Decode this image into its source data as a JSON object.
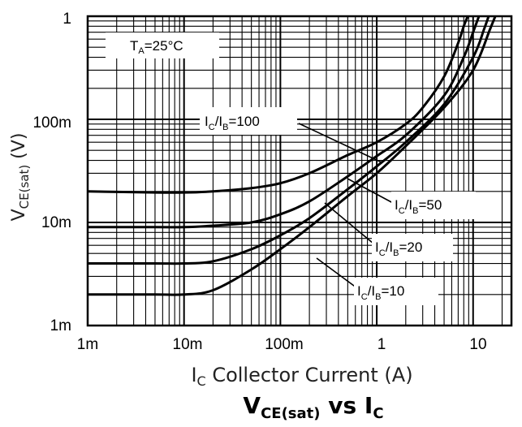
{
  "chart_data": {
    "type": "line",
    "title": "V",
    "title_sub": "CE(sat)",
    "title_vs": " vs I",
    "title_vs_sub": "C",
    "xlabel_main": "I",
    "xlabel_sub": "C",
    "xlabel_rest": "  Collector Current (A)",
    "ylabel_main": "V",
    "ylabel_sub": "CE(sat)",
    "ylabel_rest": " (V)",
    "x_scale": "log",
    "y_scale": "log",
    "xlim": [
      0.001,
      25
    ],
    "ylim": [
      0.001,
      1
    ],
    "grid": true,
    "x_ticks": [
      {
        "value": 0.001,
        "label": "1m"
      },
      {
        "value": 0.01,
        "label": "10m"
      },
      {
        "value": 0.1,
        "label": "100m"
      },
      {
        "value": 1,
        "label": "1"
      },
      {
        "value": 10,
        "label": "10"
      }
    ],
    "y_ticks": [
      {
        "value": 0.001,
        "label": "1m"
      },
      {
        "value": 0.01,
        "label": "10m"
      },
      {
        "value": 0.1,
        "label": "100m"
      },
      {
        "value": 1,
        "label": "1"
      }
    ],
    "condition": {
      "a": "T",
      "b": "A",
      "c": "=25°C"
    },
    "series": [
      {
        "name": "IC/IB=100",
        "x": [
          0.001,
          0.005,
          0.01,
          0.02,
          0.05,
          0.1,
          0.2,
          0.5,
          1,
          2,
          3,
          5,
          7,
          8,
          8.8
        ],
        "y": [
          0.02,
          0.0195,
          0.0195,
          0.02,
          0.0215,
          0.024,
          0.03,
          0.045,
          0.06,
          0.09,
          0.13,
          0.26,
          0.55,
          0.8,
          1.0
        ]
      },
      {
        "name": "IC/IB=50",
        "x": [
          0.001,
          0.005,
          0.01,
          0.02,
          0.05,
          0.1,
          0.2,
          0.5,
          1,
          2,
          5,
          8,
          10,
          11.5
        ],
        "y": [
          0.009,
          0.009,
          0.009,
          0.0093,
          0.01,
          0.012,
          0.016,
          0.028,
          0.044,
          0.07,
          0.17,
          0.4,
          0.7,
          1.0
        ]
      },
      {
        "name": "IC/IB=20",
        "x": [
          0.001,
          0.005,
          0.01,
          0.02,
          0.05,
          0.1,
          0.2,
          0.5,
          1,
          2,
          5,
          10,
          13,
          14.5
        ],
        "y": [
          0.004,
          0.004,
          0.004,
          0.0042,
          0.0055,
          0.0075,
          0.011,
          0.021,
          0.035,
          0.06,
          0.14,
          0.4,
          0.75,
          1.0
        ]
      },
      {
        "name": "IC/IB=10",
        "x": [
          0.001,
          0.005,
          0.01,
          0.02,
          0.05,
          0.1,
          0.2,
          0.5,
          1,
          2,
          5,
          10,
          15,
          17
        ],
        "y": [
          0.002,
          0.002,
          0.002,
          0.0022,
          0.0035,
          0.0055,
          0.009,
          0.018,
          0.03,
          0.055,
          0.13,
          0.3,
          0.75,
          1.0
        ]
      }
    ],
    "annotations": [
      {
        "a": "I",
        "b": "C",
        "c": "/I",
        "d": "B",
        "e": "=100"
      },
      {
        "a": "I",
        "b": "C",
        "c": "/I",
        "d": "B",
        "e": "=50"
      },
      {
        "a": "I",
        "b": "C",
        "c": "/I",
        "d": "B",
        "e": "=20"
      },
      {
        "a": "I",
        "b": "C",
        "c": "/I",
        "d": "B",
        "e": "=10"
      }
    ]
  }
}
